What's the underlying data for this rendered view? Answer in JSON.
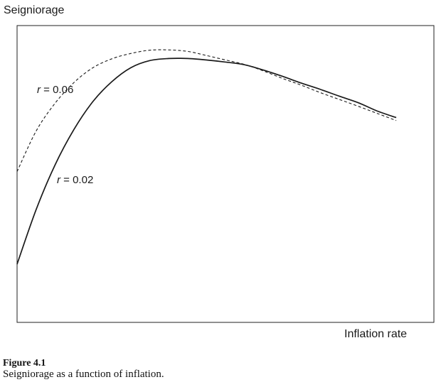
{
  "chart_data": {
    "type": "line",
    "title": "",
    "xlabel": "Inflation rate",
    "ylabel": "Seigniorage",
    "x_ticks": [],
    "y_ticks": [],
    "grid": false,
    "legend": "none",
    "series": [
      {
        "label": "r = 0.06",
        "label_var": "r",
        "label_value": " = 0.06",
        "style": "dashed",
        "color": "#1a1a1a",
        "x": [
          0,
          0.05,
          0.1,
          0.15,
          0.2,
          0.25,
          0.3,
          0.35,
          0.4,
          0.45,
          0.5,
          0.55,
          0.6,
          0.65,
          0.7,
          0.75,
          0.8,
          0.85,
          0.9,
          0.95,
          1.0
        ],
        "y": [
          0.508,
          0.644,
          0.738,
          0.808,
          0.858,
          0.888,
          0.906,
          0.917,
          0.918,
          0.913,
          0.899,
          0.884,
          0.869,
          0.847,
          0.822,
          0.799,
          0.774,
          0.751,
          0.728,
          0.704,
          0.68
        ]
      },
      {
        "label": "r = 0.02",
        "label_var": "r",
        "label_value": " = 0.02",
        "style": "solid",
        "color": "#1a1a1a",
        "x": [
          0,
          0.05,
          0.1,
          0.15,
          0.2,
          0.25,
          0.3,
          0.35,
          0.4,
          0.45,
          0.5,
          0.55,
          0.6,
          0.65,
          0.7,
          0.75,
          0.8,
          0.85,
          0.9,
          0.95,
          1.0
        ],
        "y": [
          0.196,
          0.379,
          0.53,
          0.65,
          0.744,
          0.811,
          0.858,
          0.882,
          0.889,
          0.889,
          0.884,
          0.877,
          0.868,
          0.85,
          0.829,
          0.806,
          0.785,
          0.762,
          0.74,
          0.712,
          0.69
        ]
      }
    ]
  },
  "figure": {
    "number": "Figure 4.1",
    "caption": "Seigniorage as a function of inflation."
  }
}
